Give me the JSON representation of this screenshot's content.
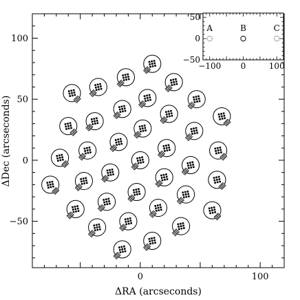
{
  "chart_data": {
    "type": "scatter",
    "xlabel": "ΔRA (arcseconds)",
    "ylabel": "ΔDec (arcseconds)",
    "xlim": [
      -90,
      120
    ],
    "ylim": [
      -88,
      120
    ],
    "xticks": [
      0,
      100
    ],
    "yticks": [
      -50,
      0,
      50,
      100
    ],
    "grid": false,
    "marker_colors": {
      "ink": "#000000",
      "background": "#ffffff"
    },
    "pointings": [
      {
        "x": 10,
        "y": 79,
        "orient": 1
      },
      {
        "x": -12,
        "y": 68,
        "orient": 1
      },
      {
        "x": 28,
        "y": 64,
        "orient": 1
      },
      {
        "x": -35,
        "y": 60,
        "orient": 1
      },
      {
        "x": 6,
        "y": 51,
        "orient": 1
      },
      {
        "x": -57,
        "y": 55,
        "orient": -1
      },
      {
        "x": 47,
        "y": 50,
        "orient": 1
      },
      {
        "x": -15,
        "y": 42,
        "orient": 1
      },
      {
        "x": 24,
        "y": 38,
        "orient": 1
      },
      {
        "x": 68,
        "y": 36,
        "orient": -1
      },
      {
        "x": -38,
        "y": 32,
        "orient": 1
      },
      {
        "x": -60,
        "y": 28,
        "orient": -1
      },
      {
        "x": 2,
        "y": 26,
        "orient": 1
      },
      {
        "x": 45,
        "y": 24,
        "orient": 1
      },
      {
        "x": -18,
        "y": 15,
        "orient": 1
      },
      {
        "x": 22,
        "y": 10,
        "orient": 1
      },
      {
        "x": -44,
        "y": 8,
        "orient": 1
      },
      {
        "x": 65,
        "y": 8,
        "orient": -1
      },
      {
        "x": -67,
        "y": 2,
        "orient": -1
      },
      {
        "x": 0,
        "y": 0,
        "orient": 1
      },
      {
        "x": 42,
        "y": -4,
        "orient": 1
      },
      {
        "x": -25,
        "y": -10,
        "orient": 1
      },
      {
        "x": 20,
        "y": -14,
        "orient": 1
      },
      {
        "x": -47,
        "y": -17,
        "orient": 1
      },
      {
        "x": 64,
        "y": -16,
        "orient": -1
      },
      {
        "x": -75,
        "y": -20,
        "orient": -1
      },
      {
        "x": -3,
        "y": -26,
        "orient": 1
      },
      {
        "x": 38,
        "y": -28,
        "orient": 1
      },
      {
        "x": -28,
        "y": -34,
        "orient": 1
      },
      {
        "x": 15,
        "y": -39,
        "orient": 1
      },
      {
        "x": -54,
        "y": -40,
        "orient": 1
      },
      {
        "x": 60,
        "y": -41,
        "orient": -1
      },
      {
        "x": -10,
        "y": -50,
        "orient": 1
      },
      {
        "x": 34,
        "y": -54,
        "orient": 1
      },
      {
        "x": -36,
        "y": -55,
        "orient": 1
      },
      {
        "x": 10,
        "y": -66,
        "orient": 1
      },
      {
        "x": -15,
        "y": -73,
        "orient": 1
      }
    ],
    "inset": {
      "xlim": [
        -120,
        120
      ],
      "ylim": [
        -50,
        60
      ],
      "xticks": [
        -100,
        0,
        100
      ],
      "yticks": [
        -50,
        0,
        50
      ],
      "tick_labels_x": [
        "−100",
        "0",
        "100"
      ],
      "tick_labels_y": [
        "−50",
        "0",
        "50"
      ],
      "points": [
        {
          "label": "A",
          "x": -100,
          "y": 0,
          "style": "dotted"
        },
        {
          "label": "B",
          "x": 0,
          "y": 0,
          "style": "solid"
        },
        {
          "label": "C",
          "x": 100,
          "y": 0,
          "style": "dotted"
        }
      ]
    }
  }
}
